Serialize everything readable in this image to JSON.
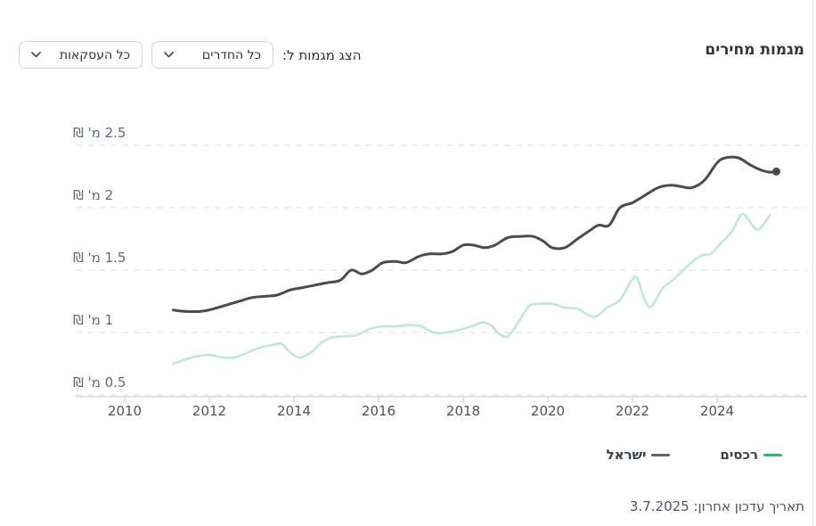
{
  "header": {
    "title": "מגמות מחירים",
    "filter_label": "הצג מגמות ל:",
    "rooms_dropdown_value": "כל החדרים",
    "deals_dropdown_value": "כל העסקאות"
  },
  "footer": {
    "label": "תאריך עדכון אחרון:",
    "date": "3.7.2025"
  },
  "chart_data": {
    "type": "line",
    "title": "מגמות מחירים",
    "unit": "מ' ₪",
    "xlim": [
      2008.85,
      2026.1
    ],
    "ylim": [
      0.5,
      2.75
    ],
    "grid": "dashed-horizontal",
    "legend_position": "bottom-right",
    "x_ticks": [
      {
        "value": 2010,
        "label": "2010"
      },
      {
        "value": 2012,
        "label": "2012"
      },
      {
        "value": 2014,
        "label": "2014"
      },
      {
        "value": 2016,
        "label": "2016"
      },
      {
        "value": 2018,
        "label": "2018"
      },
      {
        "value": 2020,
        "label": "2020"
      },
      {
        "value": 2022,
        "label": "2022"
      },
      {
        "value": 2024,
        "label": "2024"
      }
    ],
    "y_ticks": [
      {
        "value": 2.5,
        "label": "2.5 מ' ₪"
      },
      {
        "value": 2.0,
        "label": "2 מ' ₪"
      },
      {
        "value": 1.5,
        "label": "1.5 מ' ₪"
      },
      {
        "value": 1.0,
        "label": "1 מ' ₪"
      },
      {
        "value": 0.5,
        "label": "0.5 מ' ₪"
      }
    ],
    "series": [
      {
        "name": "רכסים",
        "color": "#c0e8d4",
        "legend_color": "#2aba73",
        "end_dot": false,
        "points": [
          [
            2011.15,
            0.75
          ],
          [
            2011.4,
            0.78
          ],
          [
            2011.7,
            0.81
          ],
          [
            2012.0,
            0.82
          ],
          [
            2012.3,
            0.8
          ],
          [
            2012.6,
            0.8
          ],
          [
            2012.9,
            0.84
          ],
          [
            2013.2,
            0.88
          ],
          [
            2013.5,
            0.9
          ],
          [
            2013.7,
            0.91
          ],
          [
            2013.95,
            0.83
          ],
          [
            2014.15,
            0.8
          ],
          [
            2014.4,
            0.84
          ],
          [
            2014.65,
            0.92
          ],
          [
            2014.9,
            0.96
          ],
          [
            2015.2,
            0.97
          ],
          [
            2015.5,
            0.98
          ],
          [
            2015.8,
            1.03
          ],
          [
            2016.1,
            1.05
          ],
          [
            2016.4,
            1.05
          ],
          [
            2016.7,
            1.06
          ],
          [
            2017.0,
            1.05
          ],
          [
            2017.3,
            1.0
          ],
          [
            2017.6,
            1.0
          ],
          [
            2017.9,
            1.02
          ],
          [
            2018.2,
            1.05
          ],
          [
            2018.45,
            1.08
          ],
          [
            2018.65,
            1.06
          ],
          [
            2018.85,
            0.99
          ],
          [
            2019.05,
            0.97
          ],
          [
            2019.3,
            1.08
          ],
          [
            2019.55,
            1.21
          ],
          [
            2019.8,
            1.23
          ],
          [
            2020.1,
            1.23
          ],
          [
            2020.4,
            1.2
          ],
          [
            2020.7,
            1.19
          ],
          [
            2020.95,
            1.14
          ],
          [
            2021.15,
            1.13
          ],
          [
            2021.4,
            1.2
          ],
          [
            2021.7,
            1.26
          ],
          [
            2021.95,
            1.4
          ],
          [
            2022.1,
            1.44
          ],
          [
            2022.3,
            1.25
          ],
          [
            2022.45,
            1.21
          ],
          [
            2022.7,
            1.35
          ],
          [
            2022.95,
            1.42
          ],
          [
            2023.2,
            1.5
          ],
          [
            2023.45,
            1.58
          ],
          [
            2023.65,
            1.62
          ],
          [
            2023.85,
            1.63
          ],
          [
            2024.1,
            1.72
          ],
          [
            2024.35,
            1.81
          ],
          [
            2024.6,
            1.95
          ],
          [
            2024.85,
            1.85
          ],
          [
            2025.0,
            1.83
          ],
          [
            2025.25,
            1.94
          ]
        ]
      },
      {
        "name": "ישראל",
        "color": "#4b4b4b",
        "legend_color": "#636363",
        "end_dot": true,
        "points": [
          [
            2011.15,
            1.18
          ],
          [
            2011.4,
            1.17
          ],
          [
            2011.8,
            1.17
          ],
          [
            2012.1,
            1.19
          ],
          [
            2012.4,
            1.22
          ],
          [
            2012.7,
            1.25
          ],
          [
            2013.0,
            1.28
          ],
          [
            2013.3,
            1.29
          ],
          [
            2013.6,
            1.3
          ],
          [
            2013.9,
            1.34
          ],
          [
            2014.2,
            1.36
          ],
          [
            2014.5,
            1.38
          ],
          [
            2014.8,
            1.4
          ],
          [
            2015.1,
            1.42
          ],
          [
            2015.35,
            1.5
          ],
          [
            2015.6,
            1.47
          ],
          [
            2015.85,
            1.5
          ],
          [
            2016.1,
            1.56
          ],
          [
            2016.4,
            1.57
          ],
          [
            2016.65,
            1.56
          ],
          [
            2016.95,
            1.61
          ],
          [
            2017.2,
            1.63
          ],
          [
            2017.5,
            1.63
          ],
          [
            2017.75,
            1.65
          ],
          [
            2018.0,
            1.7
          ],
          [
            2018.25,
            1.7
          ],
          [
            2018.5,
            1.68
          ],
          [
            2018.75,
            1.7
          ],
          [
            2019.05,
            1.76
          ],
          [
            2019.35,
            1.77
          ],
          [
            2019.65,
            1.77
          ],
          [
            2019.9,
            1.73
          ],
          [
            2020.1,
            1.68
          ],
          [
            2020.4,
            1.68
          ],
          [
            2020.7,
            1.75
          ],
          [
            2021.0,
            1.82
          ],
          [
            2021.2,
            1.86
          ],
          [
            2021.45,
            1.86
          ],
          [
            2021.7,
            2.0
          ],
          [
            2022.0,
            2.04
          ],
          [
            2022.3,
            2.1
          ],
          [
            2022.6,
            2.16
          ],
          [
            2022.9,
            2.18
          ],
          [
            2023.15,
            2.17
          ],
          [
            2023.4,
            2.16
          ],
          [
            2023.7,
            2.22
          ],
          [
            2024.0,
            2.36
          ],
          [
            2024.2,
            2.4
          ],
          [
            2024.5,
            2.4
          ],
          [
            2024.8,
            2.34
          ],
          [
            2025.05,
            2.3
          ],
          [
            2025.25,
            2.285
          ],
          [
            2025.4,
            2.29
          ]
        ]
      }
    ]
  }
}
